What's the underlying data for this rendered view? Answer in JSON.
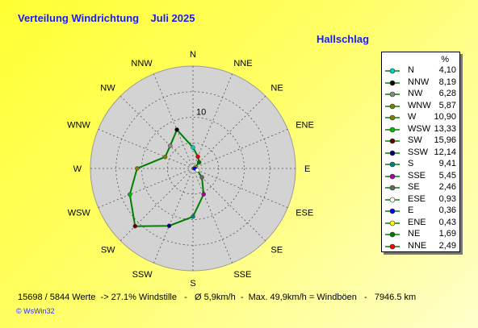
{
  "header": {
    "title": "Verteilung Windrichtung    Juli 2025",
    "station": "Hallschlag"
  },
  "chart_data": {
    "type": "radar",
    "title": "Verteilung Windrichtung    Juli 2025",
    "ring_label": "10",
    "unit": "%",
    "rmax": 20,
    "directions": [
      "N",
      "NNE",
      "NE",
      "ENE",
      "E",
      "ESE",
      "SE",
      "SSE",
      "S",
      "SSW",
      "SW",
      "WSW",
      "W",
      "WNW",
      "NW",
      "NNW"
    ],
    "values": {
      "N": 4.1,
      "NNE": 2.49,
      "NE": 1.69,
      "ENE": 0.43,
      "E": 0.36,
      "ESE": 0.93,
      "SE": 2.46,
      "SSE": 5.45,
      "S": 9.41,
      "SSW": 12.14,
      "SW": 15.96,
      "WSW": 13.33,
      "W": 10.9,
      "WNW": 5.87,
      "NW": 6.28,
      "NNW": 8.19
    },
    "line_color": "#008000",
    "background_color": "#d3d3d3"
  },
  "legend": {
    "unit": "%",
    "items": [
      {
        "name": "N",
        "value": "4,10",
        "color": "#00cccc"
      },
      {
        "name": "NNW",
        "value": "8,19",
        "color": "#000000"
      },
      {
        "name": "NW",
        "value": "6,28",
        "color": "#888888"
      },
      {
        "name": "WNW",
        "value": "5,87",
        "color": "#808000"
      },
      {
        "name": "W",
        "value": "10,90",
        "color": "#808000"
      },
      {
        "name": "WSW",
        "value": "13,33",
        "color": "#00bb00"
      },
      {
        "name": "SW",
        "value": "15,96",
        "color": "#660000"
      },
      {
        "name": "SSW",
        "value": "12,14",
        "color": "#000080"
      },
      {
        "name": "S",
        "value": "9,41",
        "color": "#008080"
      },
      {
        "name": "SSE",
        "value": "5,45",
        "color": "#aa00aa"
      },
      {
        "name": "SE",
        "value": "2,46",
        "color": "#666666"
      },
      {
        "name": "ESE",
        "value": "0,93",
        "color": "#ffffff"
      },
      {
        "name": "E",
        "value": "0,36",
        "color": "#0000ff"
      },
      {
        "name": "ENE",
        "value": "0,43",
        "color": "#ffff00"
      },
      {
        "name": "NE",
        "value": "1,69",
        "color": "#007700"
      },
      {
        "name": "NNE",
        "value": "2,49",
        "color": "#ff0000"
      }
    ]
  },
  "footer": {
    "stats": "15698 / 5844 Werte  -> 27.1% Windstille   -   Ø 5,9km/h  -  Max. 49,9km/h = Windböen   -   7946.5 km",
    "brand": "© WsWin32"
  }
}
